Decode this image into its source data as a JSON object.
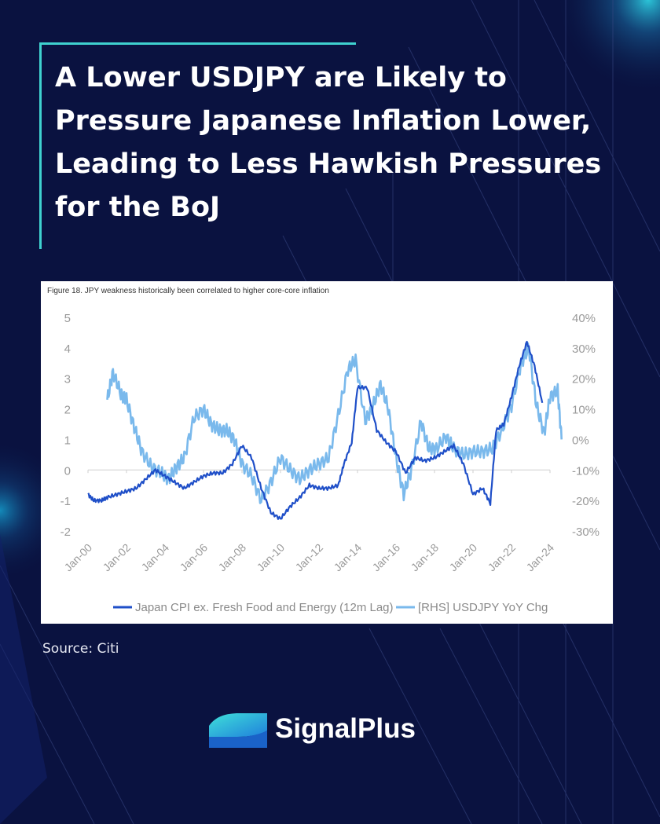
{
  "page": {
    "title_lines": [
      "A Lower USDJPY are Likely to",
      "Pressure Japanese Inflation Lower,",
      "Leading to Less Hawkish Pressures",
      "for the BoJ"
    ],
    "source": "Source: Citi",
    "brand": "SignalPlus",
    "colors": {
      "background": "#0a1240",
      "accent": "#3fd1cf",
      "brand_logo": "#1fb8d6"
    }
  },
  "chart_data": {
    "type": "line",
    "title": "Figure 18. JPY weakness historically been correlated to higher core-core inflation",
    "x_ticks": [
      "Jan-00",
      "Jan-02",
      "Jan-04",
      "Jan-06",
      "Jan-08",
      "Jan-10",
      "Jan-12",
      "Jan-14",
      "Jan-16",
      "Jan-18",
      "Jan-20",
      "Jan-22",
      "Jan-24"
    ],
    "y_left": {
      "range": [
        -2,
        5
      ],
      "ticks": [
        "5",
        "4",
        "3",
        "2",
        "1",
        "0",
        "-1",
        "-2"
      ]
    },
    "y_right": {
      "range": [
        -30,
        40
      ],
      "ticks": [
        "40%",
        "30%",
        "20%",
        "10%",
        "0%",
        "-10%",
        "-20%",
        "-30%"
      ]
    },
    "grid": false,
    "legend_position": "bottom",
    "series": [
      {
        "name": "Japan CPI ex. Fresh Food and Energy (12m Lag)",
        "axis": "left",
        "color": "#1f4fc8",
        "points": [
          [
            2000.0,
            -0.8
          ],
          [
            2000.3,
            -1.0
          ],
          [
            2000.7,
            -1.0
          ],
          [
            2001.0,
            -0.9
          ],
          [
            2001.5,
            -0.8
          ],
          [
            2002.0,
            -0.7
          ],
          [
            2002.5,
            -0.6
          ],
          [
            2003.0,
            -0.3
          ],
          [
            2003.5,
            0.0
          ],
          [
            2004.0,
            -0.2
          ],
          [
            2004.5,
            -0.4
          ],
          [
            2005.0,
            -0.6
          ],
          [
            2005.5,
            -0.4
          ],
          [
            2006.0,
            -0.2
          ],
          [
            2006.5,
            -0.1
          ],
          [
            2007.0,
            -0.1
          ],
          [
            2007.5,
            0.2
          ],
          [
            2008.0,
            0.8
          ],
          [
            2008.5,
            0.4
          ],
          [
            2009.0,
            -0.6
          ],
          [
            2009.5,
            -1.4
          ],
          [
            2010.0,
            -1.6
          ],
          [
            2010.5,
            -1.2
          ],
          [
            2011.0,
            -0.9
          ],
          [
            2011.5,
            -0.5
          ],
          [
            2012.0,
            -0.6
          ],
          [
            2012.5,
            -0.6
          ],
          [
            2013.0,
            -0.5
          ],
          [
            2013.3,
            0.2
          ],
          [
            2013.7,
            0.9
          ],
          [
            2014.0,
            2.7
          ],
          [
            2014.5,
            2.7
          ],
          [
            2015.0,
            1.3
          ],
          [
            2015.5,
            0.9
          ],
          [
            2016.0,
            0.6
          ],
          [
            2016.5,
            -0.1
          ],
          [
            2017.0,
            0.4
          ],
          [
            2017.5,
            0.3
          ],
          [
            2018.0,
            0.4
          ],
          [
            2018.5,
            0.6
          ],
          [
            2019.0,
            0.8
          ],
          [
            2019.5,
            0.2
          ],
          [
            2020.0,
            -0.8
          ],
          [
            2020.5,
            -0.6
          ],
          [
            2020.9,
            -1.1
          ],
          [
            2021.2,
            1.3
          ],
          [
            2021.6,
            1.5
          ],
          [
            2022.0,
            2.4
          ],
          [
            2022.4,
            3.4
          ],
          [
            2022.8,
            4.2
          ],
          [
            2023.2,
            3.4
          ],
          [
            2023.6,
            2.2
          ]
        ]
      },
      {
        "name": "[RHS] USDJPY YoY Chg",
        "axis": "right",
        "color": "#7ab9ec",
        "points": [
          [
            2001.0,
            13
          ],
          [
            2001.3,
            22
          ],
          [
            2001.7,
            15
          ],
          [
            2002.0,
            13
          ],
          [
            2002.4,
            4
          ],
          [
            2002.8,
            -4
          ],
          [
            2003.3,
            -9
          ],
          [
            2003.8,
            -11
          ],
          [
            2004.2,
            -13
          ],
          [
            2004.6,
            -9
          ],
          [
            2005.0,
            -6
          ],
          [
            2005.5,
            7
          ],
          [
            2006.0,
            10
          ],
          [
            2006.4,
            5
          ],
          [
            2006.8,
            3
          ],
          [
            2007.2,
            3
          ],
          [
            2007.6,
            0
          ],
          [
            2008.0,
            -8
          ],
          [
            2008.5,
            -12
          ],
          [
            2009.0,
            -20
          ],
          [
            2009.5,
            -14
          ],
          [
            2010.0,
            -6
          ],
          [
            2010.5,
            -10
          ],
          [
            2011.0,
            -13
          ],
          [
            2011.5,
            -10
          ],
          [
            2012.0,
            -8
          ],
          [
            2012.5,
            -6
          ],
          [
            2013.0,
            8
          ],
          [
            2013.5,
            23
          ],
          [
            2013.9,
            26
          ],
          [
            2014.4,
            6
          ],
          [
            2014.8,
            11
          ],
          [
            2015.2,
            18
          ],
          [
            2015.6,
            10
          ],
          [
            2016.0,
            -6
          ],
          [
            2016.4,
            -18
          ],
          [
            2016.8,
            -10
          ],
          [
            2017.3,
            6
          ],
          [
            2017.7,
            -3
          ],
          [
            2018.1,
            -3
          ],
          [
            2018.6,
            1
          ],
          [
            2019.0,
            -3
          ],
          [
            2019.5,
            -5
          ],
          [
            2020.0,
            -4
          ],
          [
            2020.5,
            -4
          ],
          [
            2021.0,
            -3
          ],
          [
            2021.5,
            3
          ],
          [
            2022.0,
            11
          ],
          [
            2022.5,
            25
          ],
          [
            2022.9,
            30
          ],
          [
            2023.3,
            11
          ],
          [
            2023.7,
            2
          ],
          [
            2024.0,
            14
          ],
          [
            2024.4,
            16
          ],
          [
            2024.6,
            0
          ]
        ]
      }
    ]
  }
}
